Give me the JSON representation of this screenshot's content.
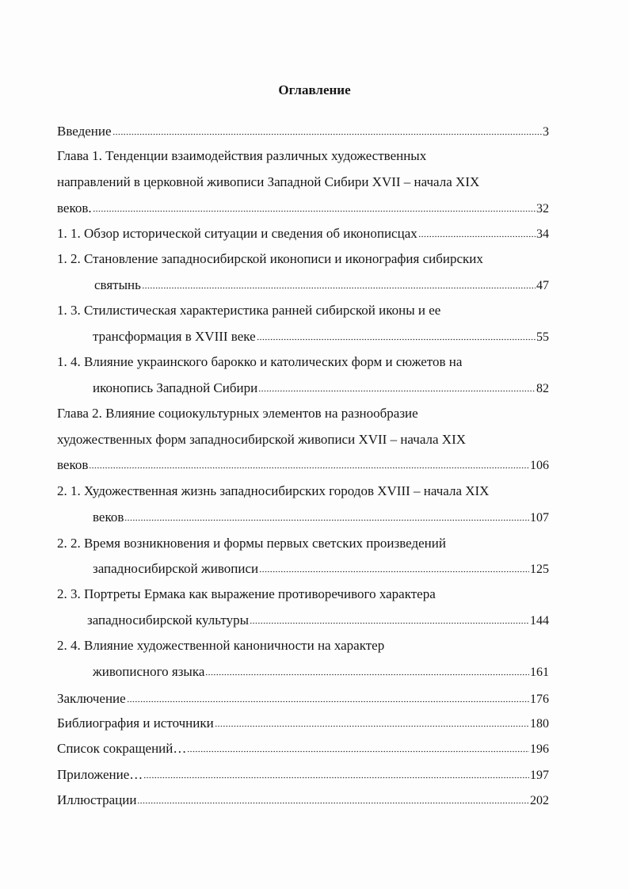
{
  "title": "Оглавление",
  "entries": [
    {
      "lines": [
        "Введение"
      ],
      "page": "3"
    },
    {
      "lines": [
        "Глава 1. Тенденции взаимодействия различных художественных",
        "направлений в церковной живописи Западной Сибири  XVII – начала XIX",
        "веков. "
      ],
      "page": "32"
    },
    {
      "lines": [
        "1.  1. Обзор исторической ситуации и сведения об иконописцах"
      ],
      "page": "34"
    },
    {
      "lines": [
        "1.  2. Становление западносибирской иконописи и иконография сибирских",
        "святынь"
      ],
      "page": "47"
    },
    {
      "lines": [
        "1.  3. Стилистическая характеристика ранней сибирской иконы и ее",
        "трансформация в XVIII веке"
      ],
      "page": "55"
    },
    {
      "lines": [
        "1.  4. Влияние украинского барокко и католических форм и сюжетов на",
        "иконопись Западной Сибири"
      ],
      "page": "82"
    },
    {
      "lines": [
        "Глава 2. Влияние социокультурных элементов на разнообразие",
        "художественных форм западносибирской живописи XVII – начала XIX",
        "веков"
      ],
      "page": "106"
    },
    {
      "lines": [
        "2.  1. Художественная жизнь западносибирских городов  XVIII – начала XIX",
        "веков"
      ],
      "page": "107"
    },
    {
      "lines": [
        "2.  2. Время возникновения и формы первых светских произведений",
        "западносибирской живописи"
      ],
      "page": "125"
    },
    {
      "lines": [
        "2. 3. Портреты Ермака как выражение противоречивого характера",
        "западносибирской культуры"
      ],
      "page": "144"
    },
    {
      "lines": [
        "2. 4. Влияние художественной каноничности на характер",
        "живописного языка"
      ],
      "page": "161"
    },
    {
      "lines": [
        "Заключение"
      ],
      "page": "176"
    },
    {
      "lines": [
        "Библиография и источники"
      ],
      "page": "180"
    },
    {
      "lines": [
        "Список сокращений…"
      ],
      "page": "196"
    },
    {
      "lines": [
        "Приложение…"
      ],
      "page": "197"
    },
    {
      "lines": [
        "Иллюстрации"
      ],
      "page": "202"
    }
  ]
}
